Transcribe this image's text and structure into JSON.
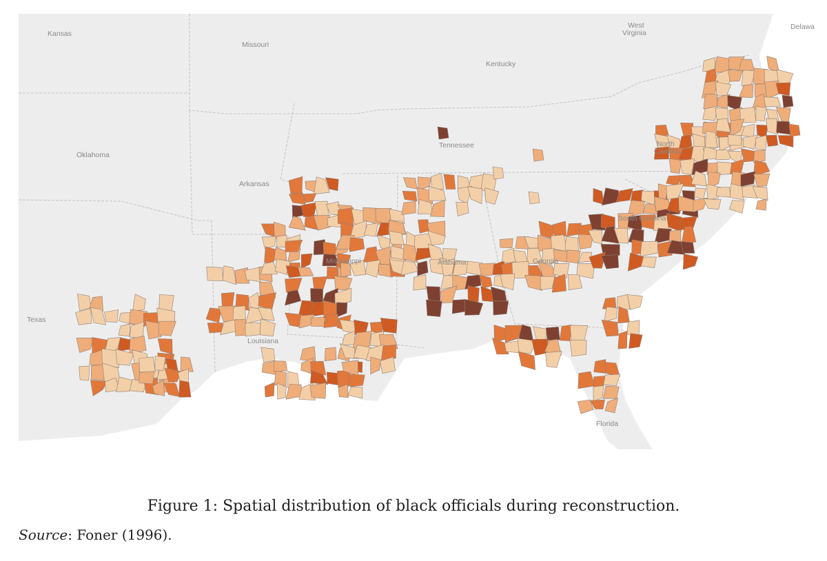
{
  "figure": {
    "caption": "Figure 1: Spatial distribution of black officials during reconstruction.",
    "source_label": "Source",
    "source_text": ": Foner (1996)."
  },
  "map": {
    "state_labels": {
      "kansas": "Kansas",
      "missouri": "Missouri",
      "kentucky": "Kentucky",
      "west_virginia_1": "West",
      "west_virginia_2": "Virginia",
      "delaware": "Delawa",
      "oklahoma": "Oklahoma",
      "tennessee": "Tennessee",
      "arkansas": "Arkansas",
      "north_carolina_1": "North",
      "north_carolina_2": "Carolina",
      "texas": "Texas",
      "louisiana": "Louisiana",
      "mississippi": "Mississippi",
      "alabama": "Alabama",
      "georgia": "Georgia",
      "south_carolina": "South Carolina",
      "florida": "Florida"
    },
    "colors": {
      "land": "#ededed",
      "water": "#ffffff",
      "border": "#c6c6c6",
      "shade_1": "#f3cfa8",
      "shade_2": "#efad7a",
      "shade_3": "#e2773a",
      "shade_4": "#cf5a22",
      "shade_5": "#7e4030"
    }
  }
}
